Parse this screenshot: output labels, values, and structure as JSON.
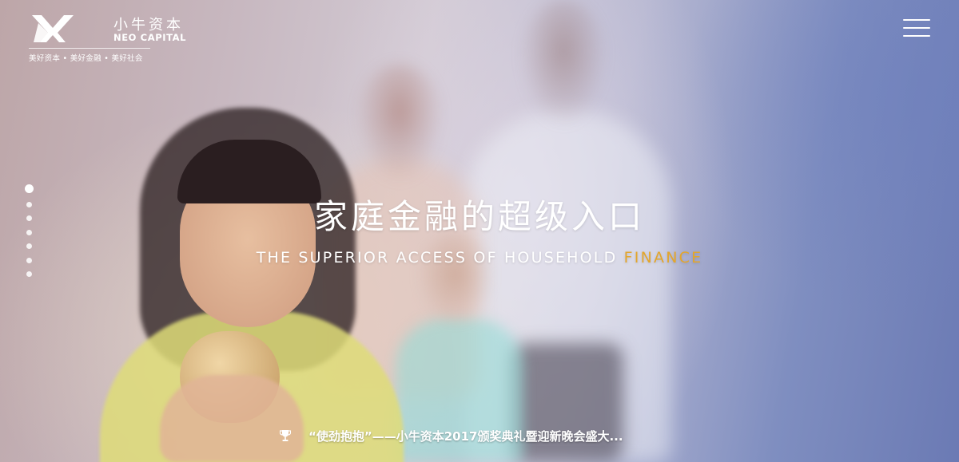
{
  "brand": {
    "name_cn": "小牛资本",
    "name_en": "NEO CAPITAL",
    "slogan": "美好资本 • 美好金融 • 美好社会",
    "logo_icon": "neo-capital-logo-mark"
  },
  "header": {
    "menu_icon": "hamburger-menu-icon"
  },
  "slider": {
    "dot_count": 7,
    "active_index": 0
  },
  "hero": {
    "title_cn": "家庭金融的超级入口",
    "subtitle_en_main": "THE SUPERIOR ACCESS OF HOUSEHOLD ",
    "subtitle_en_accent": "FINANCE"
  },
  "news": {
    "icon": "trophy-icon",
    "text": "“使劲抱抱”——小牛资本2017颁奖典礼暨迎新晚会盛大..."
  },
  "colors": {
    "accent": "#e3a62c",
    "text": "#ffffff"
  }
}
